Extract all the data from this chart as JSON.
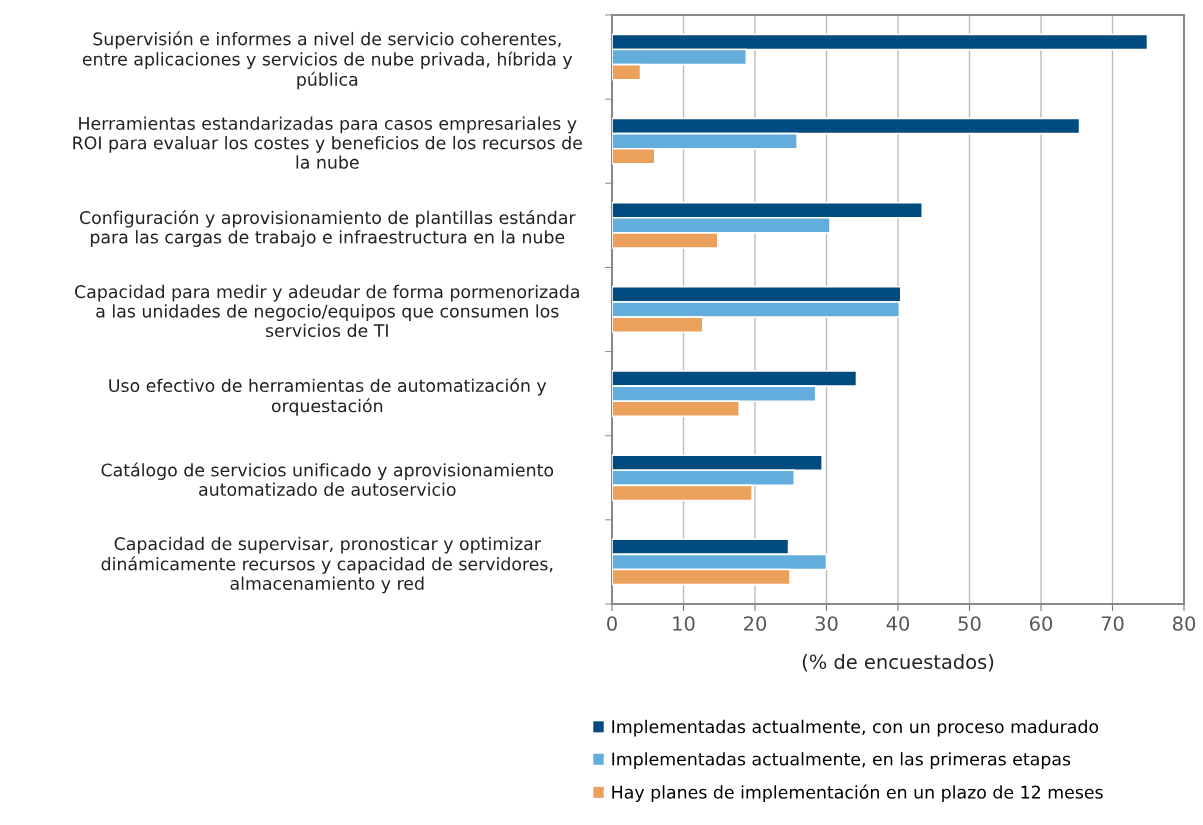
{
  "chart_data": {
    "type": "bar",
    "orientation": "horizontal",
    "xlabel": "(% de encuestados)",
    "categories": [
      "Supervisión e informes a nivel de servicio coherentes,\nentre aplicaciones y servicios de nube privada, híbrida y\npública",
      "Herramientas estandarizadas para casos empresariales y\nROI para evaluar los costes y beneficios de los recursos de\nla nube",
      "Configuración y aprovisionamiento de plantillas estándar\npara las cargas de trabajo e infraestructura en la nube",
      "Capacidad para medir y adeudar de forma pormenorizada\na las unidades de negocio/equipos que consumen los\nservicios de TI",
      "Uso efectivo de herramientas de automatización y\norquestación",
      "Catálogo de servicios unificado y aprovisionamiento\nautomatizado de autoservicio",
      "Capacidad de supervisar, pronosticar y optimizar\ndinámicamente recursos y capacidad de servidores,\nalmacenamiento y red"
    ],
    "series": [
      {
        "name": "Implementadas actualmente, con un proceso madurado",
        "color": "#004b80",
        "values": [
          74.9,
          65.4,
          43.4,
          40.4,
          34.2,
          29.4,
          24.7
        ]
      },
      {
        "name": "Implementadas actualmente, en las primeras etapas",
        "color": "#63addd",
        "values": [
          18.8,
          25.9,
          30.5,
          40.2,
          28.5,
          25.5,
          30.0
        ]
      },
      {
        "name": "Hay planes de implementación en un plazo de 12 meses",
        "color": "#eba05c",
        "values": [
          4.0,
          6.0,
          14.8,
          12.7,
          17.8,
          19.6,
          24.9
        ]
      }
    ],
    "xlim": [
      0,
      80
    ],
    "xticks": [
      0,
      10,
      20,
      30,
      40,
      50,
      60,
      70,
      80
    ],
    "grid": "x",
    "legend": "bottom"
  }
}
